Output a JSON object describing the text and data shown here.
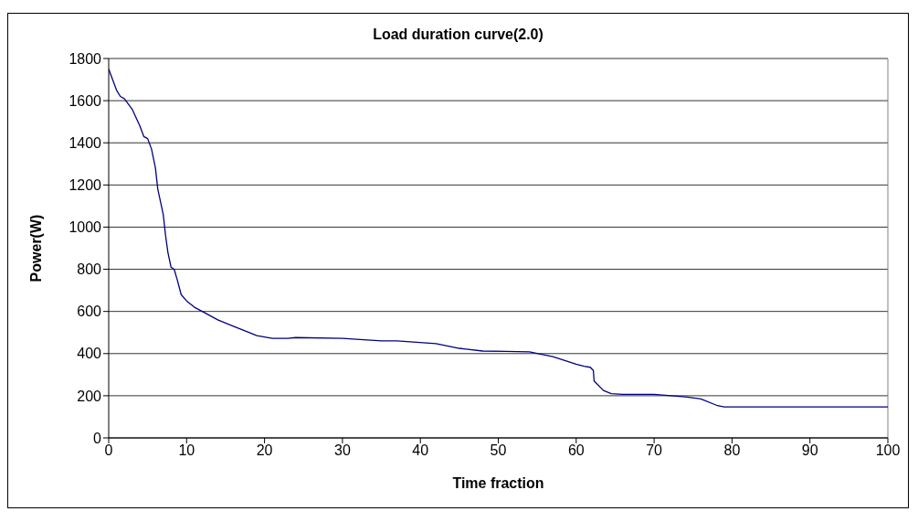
{
  "chart_data": {
    "type": "line",
    "title": "Load duration curve(2.0)",
    "xlabel": "Time fraction",
    "ylabel": "Power(W)",
    "xlim": [
      0,
      100
    ],
    "xticks": [
      0,
      10,
      20,
      30,
      40,
      50,
      60,
      70,
      80,
      90,
      100
    ],
    "ylim": [
      0,
      1800
    ],
    "yticks": [
      0,
      200,
      400,
      600,
      800,
      1000,
      1200,
      1400,
      1600,
      1800
    ],
    "grid": "y",
    "marker": "none",
    "line_style": "solid",
    "series": [
      {
        "color": "#000080",
        "x": [
          0,
          0.5,
          1,
          1.5,
          2,
          3,
          4,
          4.5,
          5,
          5.5,
          6,
          6.3,
          7,
          7.3,
          7.6,
          8,
          8.4,
          8.8,
          9.3,
          10,
          11,
          12,
          14,
          16,
          18,
          19,
          21,
          23,
          24,
          30,
          35,
          37,
          42,
          43,
          45,
          48,
          51,
          54,
          57,
          60,
          61,
          61.8,
          62.2,
          62.3,
          63.5,
          64.5,
          66,
          70,
          74,
          76,
          78,
          79,
          100
        ],
        "values": [
          1750,
          1700,
          1650,
          1620,
          1610,
          1560,
          1480,
          1430,
          1420,
          1370,
          1280,
          1180,
          1060,
          960,
          880,
          810,
          800,
          750,
          680,
          650,
          620,
          600,
          560,
          530,
          500,
          485,
          472,
          472,
          476,
          472,
          460,
          460,
          447,
          440,
          425,
          412,
          410,
          408,
          385,
          350,
          340,
          335,
          320,
          270,
          225,
          210,
          207,
          207,
          195,
          185,
          155,
          147,
          147
        ]
      }
    ]
  }
}
